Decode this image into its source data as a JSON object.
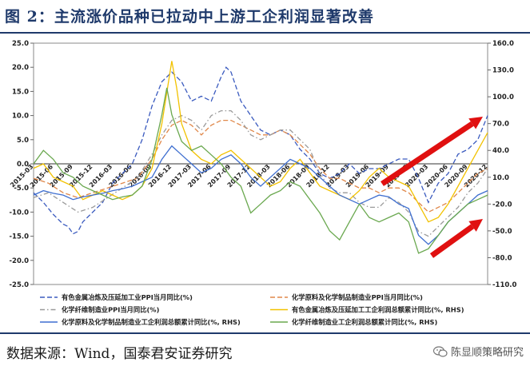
{
  "header": {
    "title": "图 2：主流涨价品种已拉动中上游工企利润显著改善"
  },
  "footer": {
    "source": "数据来源：Wind，国泰君安证券研究",
    "watermark": "陈显顺策略研究"
  },
  "colors": {
    "s1": "#3b5bbf",
    "s2": "#e0884a",
    "s3": "#9a9a9a",
    "s4": "#f2c200",
    "s5": "#3f6fd0",
    "s6": "#6aa84f",
    "arrow": "#e01010"
  },
  "icons": {
    "watermark": "wechat-icon"
  },
  "chart_data": {
    "type": "line",
    "x": [
      "2015-03",
      "2015-06",
      "2015-09",
      "2015-12",
      "2016-03",
      "2016-06",
      "2016-09",
      "2016-12",
      "2017-03",
      "2017-06",
      "2017-09",
      "2017-12",
      "2018-03",
      "2018-06",
      "2018-09",
      "2018-12",
      "2019-03",
      "2019-06",
      "2019-09",
      "2019-12",
      "2020-03",
      "2020-06",
      "2020-09",
      "2020-12"
    ],
    "ylim_left": [
      -25,
      25
    ],
    "ylim_right": [
      -110,
      160
    ],
    "left_ticks": [
      "25.0",
      "20.0",
      "15.0",
      "10.0",
      "5.0",
      "0.0",
      "-5.0",
      "-10.0",
      "-15.0",
      "-20.0",
      "-25.0"
    ],
    "right_ticks": [
      "160.0",
      "130.0",
      "100.0",
      "70.0",
      "40.0",
      "10.0",
      "-20.0",
      "-50.0",
      "-80.0",
      "-110.0"
    ],
    "series": [
      {
        "name": "有色金属冶炼及压延加工业PPI当月同比(%)",
        "axis": "left",
        "style": "dash",
        "values": [
          [
            0,
            -6
          ],
          [
            2,
            -8
          ],
          [
            4,
            -10.5
          ],
          [
            6,
            -12.5
          ],
          [
            7,
            -13
          ],
          [
            8,
            -14.5
          ],
          [
            9,
            -14
          ],
          [
            10,
            -12
          ],
          [
            12,
            -10
          ],
          [
            14,
            -8
          ],
          [
            16,
            -4
          ],
          [
            18,
            -2
          ],
          [
            20,
            0
          ],
          [
            22,
            5
          ],
          [
            24,
            12
          ],
          [
            26,
            17
          ],
          [
            28,
            19
          ],
          [
            30,
            17
          ],
          [
            32,
            13
          ],
          [
            34,
            14
          ],
          [
            36,
            13
          ],
          [
            38,
            18
          ],
          [
            39,
            20
          ],
          [
            40,
            19
          ],
          [
            42,
            13
          ],
          [
            44,
            10
          ],
          [
            46,
            7
          ],
          [
            48,
            6
          ],
          [
            50,
            7
          ],
          [
            52,
            6
          ],
          [
            54,
            3
          ],
          [
            56,
            1
          ],
          [
            58,
            -2
          ],
          [
            60,
            -3
          ],
          [
            62,
            -2
          ],
          [
            64,
            0
          ],
          [
            66,
            -2
          ],
          [
            68,
            -1
          ],
          [
            70,
            -1
          ],
          [
            72,
            0
          ],
          [
            74,
            1
          ],
          [
            76,
            1
          ],
          [
            78,
            -3
          ],
          [
            80,
            -8
          ],
          [
            82,
            -4
          ],
          [
            84,
            -2
          ],
          [
            86,
            2
          ],
          [
            88,
            3
          ],
          [
            90,
            5
          ],
          [
            92,
            10
          ]
        ]
      },
      {
        "name": "化学原料及化学制品制造业PPI当月同比(%)",
        "axis": "left",
        "style": "dash",
        "values": [
          [
            0,
            -3
          ],
          [
            3,
            -4
          ],
          [
            6,
            -6
          ],
          [
            9,
            -7
          ],
          [
            12,
            -6
          ],
          [
            15,
            -5
          ],
          [
            18,
            -4
          ],
          [
            21,
            -3
          ],
          [
            24,
            1
          ],
          [
            26,
            5
          ],
          [
            28,
            8
          ],
          [
            30,
            9
          ],
          [
            32,
            8
          ],
          [
            34,
            6
          ],
          [
            36,
            8
          ],
          [
            38,
            9
          ],
          [
            40,
            9
          ],
          [
            42,
            8
          ],
          [
            44,
            7
          ],
          [
            46,
            6
          ],
          [
            48,
            6
          ],
          [
            50,
            7
          ],
          [
            52,
            6
          ],
          [
            54,
            4
          ],
          [
            56,
            2
          ],
          [
            58,
            -1
          ],
          [
            60,
            -3
          ],
          [
            62,
            -3
          ],
          [
            64,
            -4
          ],
          [
            66,
            -5
          ],
          [
            68,
            -5
          ],
          [
            70,
            -6
          ],
          [
            72,
            -5
          ],
          [
            74,
            -5
          ],
          [
            76,
            -6
          ],
          [
            78,
            -8
          ],
          [
            80,
            -10
          ],
          [
            82,
            -9
          ],
          [
            84,
            -8
          ],
          [
            86,
            -6
          ],
          [
            88,
            -4
          ],
          [
            90,
            -2
          ],
          [
            92,
            -1
          ]
        ]
      },
      {
        "name": "化学纤维制造业PPI当月同比(%)",
        "axis": "left",
        "style": "dashdot",
        "values": [
          [
            0,
            -7
          ],
          [
            3,
            -6
          ],
          [
            6,
            -8
          ],
          [
            9,
            -10
          ],
          [
            12,
            -9
          ],
          [
            15,
            -7
          ],
          [
            18,
            -5
          ],
          [
            21,
            -3
          ],
          [
            24,
            2
          ],
          [
            26,
            6
          ],
          [
            28,
            9
          ],
          [
            30,
            10
          ],
          [
            32,
            9
          ],
          [
            34,
            7
          ],
          [
            36,
            10
          ],
          [
            38,
            11
          ],
          [
            40,
            11
          ],
          [
            42,
            9
          ],
          [
            44,
            6
          ],
          [
            46,
            5
          ],
          [
            48,
            6
          ],
          [
            50,
            7
          ],
          [
            52,
            7
          ],
          [
            54,
            5
          ],
          [
            56,
            3
          ],
          [
            58,
            -2
          ],
          [
            60,
            -5
          ],
          [
            62,
            -6
          ],
          [
            64,
            -6
          ],
          [
            66,
            -8
          ],
          [
            68,
            -9
          ],
          [
            70,
            -9
          ],
          [
            72,
            -7
          ],
          [
            74,
            -8
          ],
          [
            76,
            -10
          ],
          [
            78,
            -14
          ],
          [
            80,
            -15
          ],
          [
            82,
            -13
          ],
          [
            84,
            -11
          ],
          [
            86,
            -9
          ],
          [
            88,
            -6
          ],
          [
            90,
            -4
          ],
          [
            92,
            -1
          ]
        ]
      },
      {
        "name": "有色金属冶炼及压延加工工企利润总额累计同比(%, RHS)",
        "axis": "right",
        "style": "solid",
        "values": [
          [
            0,
            20
          ],
          [
            2,
            25
          ],
          [
            4,
            10
          ],
          [
            6,
            5
          ],
          [
            8,
            0
          ],
          [
            10,
            -15
          ],
          [
            12,
            -10
          ],
          [
            14,
            -5
          ],
          [
            16,
            -10
          ],
          [
            18,
            -15
          ],
          [
            20,
            -10
          ],
          [
            22,
            0
          ],
          [
            24,
            20
          ],
          [
            26,
            70
          ],
          [
            28,
            140
          ],
          [
            29,
            110
          ],
          [
            30,
            70
          ],
          [
            32,
            40
          ],
          [
            34,
            30
          ],
          [
            36,
            25
          ],
          [
            38,
            35
          ],
          [
            40,
            40
          ],
          [
            42,
            30
          ],
          [
            44,
            20
          ],
          [
            46,
            10
          ],
          [
            48,
            0
          ],
          [
            50,
            5
          ],
          [
            52,
            20
          ],
          [
            54,
            30
          ],
          [
            56,
            15
          ],
          [
            58,
            0
          ],
          [
            60,
            -5
          ],
          [
            62,
            -10
          ],
          [
            64,
            -15
          ],
          [
            66,
            -5
          ],
          [
            68,
            10
          ],
          [
            70,
            20
          ],
          [
            72,
            10
          ],
          [
            74,
            5
          ],
          [
            76,
            0
          ],
          [
            78,
            -20
          ],
          [
            80,
            -40
          ],
          [
            82,
            -35
          ],
          [
            84,
            -20
          ],
          [
            86,
            0
          ],
          [
            88,
            20
          ],
          [
            90,
            40
          ],
          [
            92,
            60
          ]
        ]
      },
      {
        "name": "化学原料及化学制品制造业工企利润总额累计同比(%, RHS)",
        "axis": "right",
        "style": "solid",
        "values": [
          [
            0,
            -10
          ],
          [
            2,
            -5
          ],
          [
            4,
            -8
          ],
          [
            6,
            -10
          ],
          [
            8,
            -15
          ],
          [
            10,
            -12
          ],
          [
            12,
            -10
          ],
          [
            14,
            -8
          ],
          [
            16,
            -5
          ],
          [
            18,
            -3
          ],
          [
            20,
            0
          ],
          [
            22,
            5
          ],
          [
            24,
            10
          ],
          [
            26,
            30
          ],
          [
            28,
            45
          ],
          [
            30,
            35
          ],
          [
            32,
            25
          ],
          [
            34,
            15
          ],
          [
            36,
            20
          ],
          [
            38,
            30
          ],
          [
            40,
            35
          ],
          [
            42,
            25
          ],
          [
            44,
            10
          ],
          [
            46,
            0
          ],
          [
            48,
            10
          ],
          [
            50,
            20
          ],
          [
            52,
            30
          ],
          [
            54,
            25
          ],
          [
            56,
            20
          ],
          [
            58,
            10
          ],
          [
            60,
            0
          ],
          [
            62,
            -10
          ],
          [
            64,
            -15
          ],
          [
            66,
            -20
          ],
          [
            68,
            -15
          ],
          [
            70,
            -10
          ],
          [
            72,
            -12
          ],
          [
            74,
            -20
          ],
          [
            76,
            -25
          ],
          [
            78,
            -55
          ],
          [
            80,
            -65
          ],
          [
            82,
            -55
          ],
          [
            84,
            -40
          ],
          [
            86,
            -30
          ],
          [
            88,
            -20
          ],
          [
            90,
            -10
          ],
          [
            92,
            -5
          ]
        ]
      },
      {
        "name": "化学纤维制造业工企利润总额累计同比(%, RHS)",
        "axis": "right",
        "style": "solid",
        "values": [
          [
            0,
            25
          ],
          [
            2,
            40
          ],
          [
            4,
            30
          ],
          [
            6,
            15
          ],
          [
            8,
            10
          ],
          [
            10,
            0
          ],
          [
            12,
            -5
          ],
          [
            14,
            -10
          ],
          [
            16,
            -15
          ],
          [
            18,
            -12
          ],
          [
            20,
            -10
          ],
          [
            22,
            0
          ],
          [
            24,
            30
          ],
          [
            26,
            80
          ],
          [
            27,
            110
          ],
          [
            28,
            80
          ],
          [
            30,
            50
          ],
          [
            32,
            40
          ],
          [
            34,
            45
          ],
          [
            36,
            35
          ],
          [
            38,
            25
          ],
          [
            40,
            10
          ],
          [
            42,
            0
          ],
          [
            44,
            -30
          ],
          [
            46,
            -20
          ],
          [
            48,
            -10
          ],
          [
            50,
            -5
          ],
          [
            52,
            5
          ],
          [
            54,
            0
          ],
          [
            56,
            -15
          ],
          [
            58,
            -30
          ],
          [
            60,
            -50
          ],
          [
            62,
            -60
          ],
          [
            64,
            -40
          ],
          [
            66,
            -20
          ],
          [
            68,
            -35
          ],
          [
            70,
            -40
          ],
          [
            72,
            -35
          ],
          [
            74,
            -30
          ],
          [
            76,
            -40
          ],
          [
            78,
            -75
          ],
          [
            80,
            -70
          ],
          [
            82,
            -55
          ],
          [
            84,
            -40
          ],
          [
            86,
            -30
          ],
          [
            88,
            -20
          ],
          [
            90,
            -15
          ],
          [
            92,
            -10
          ]
        ]
      }
    ]
  }
}
